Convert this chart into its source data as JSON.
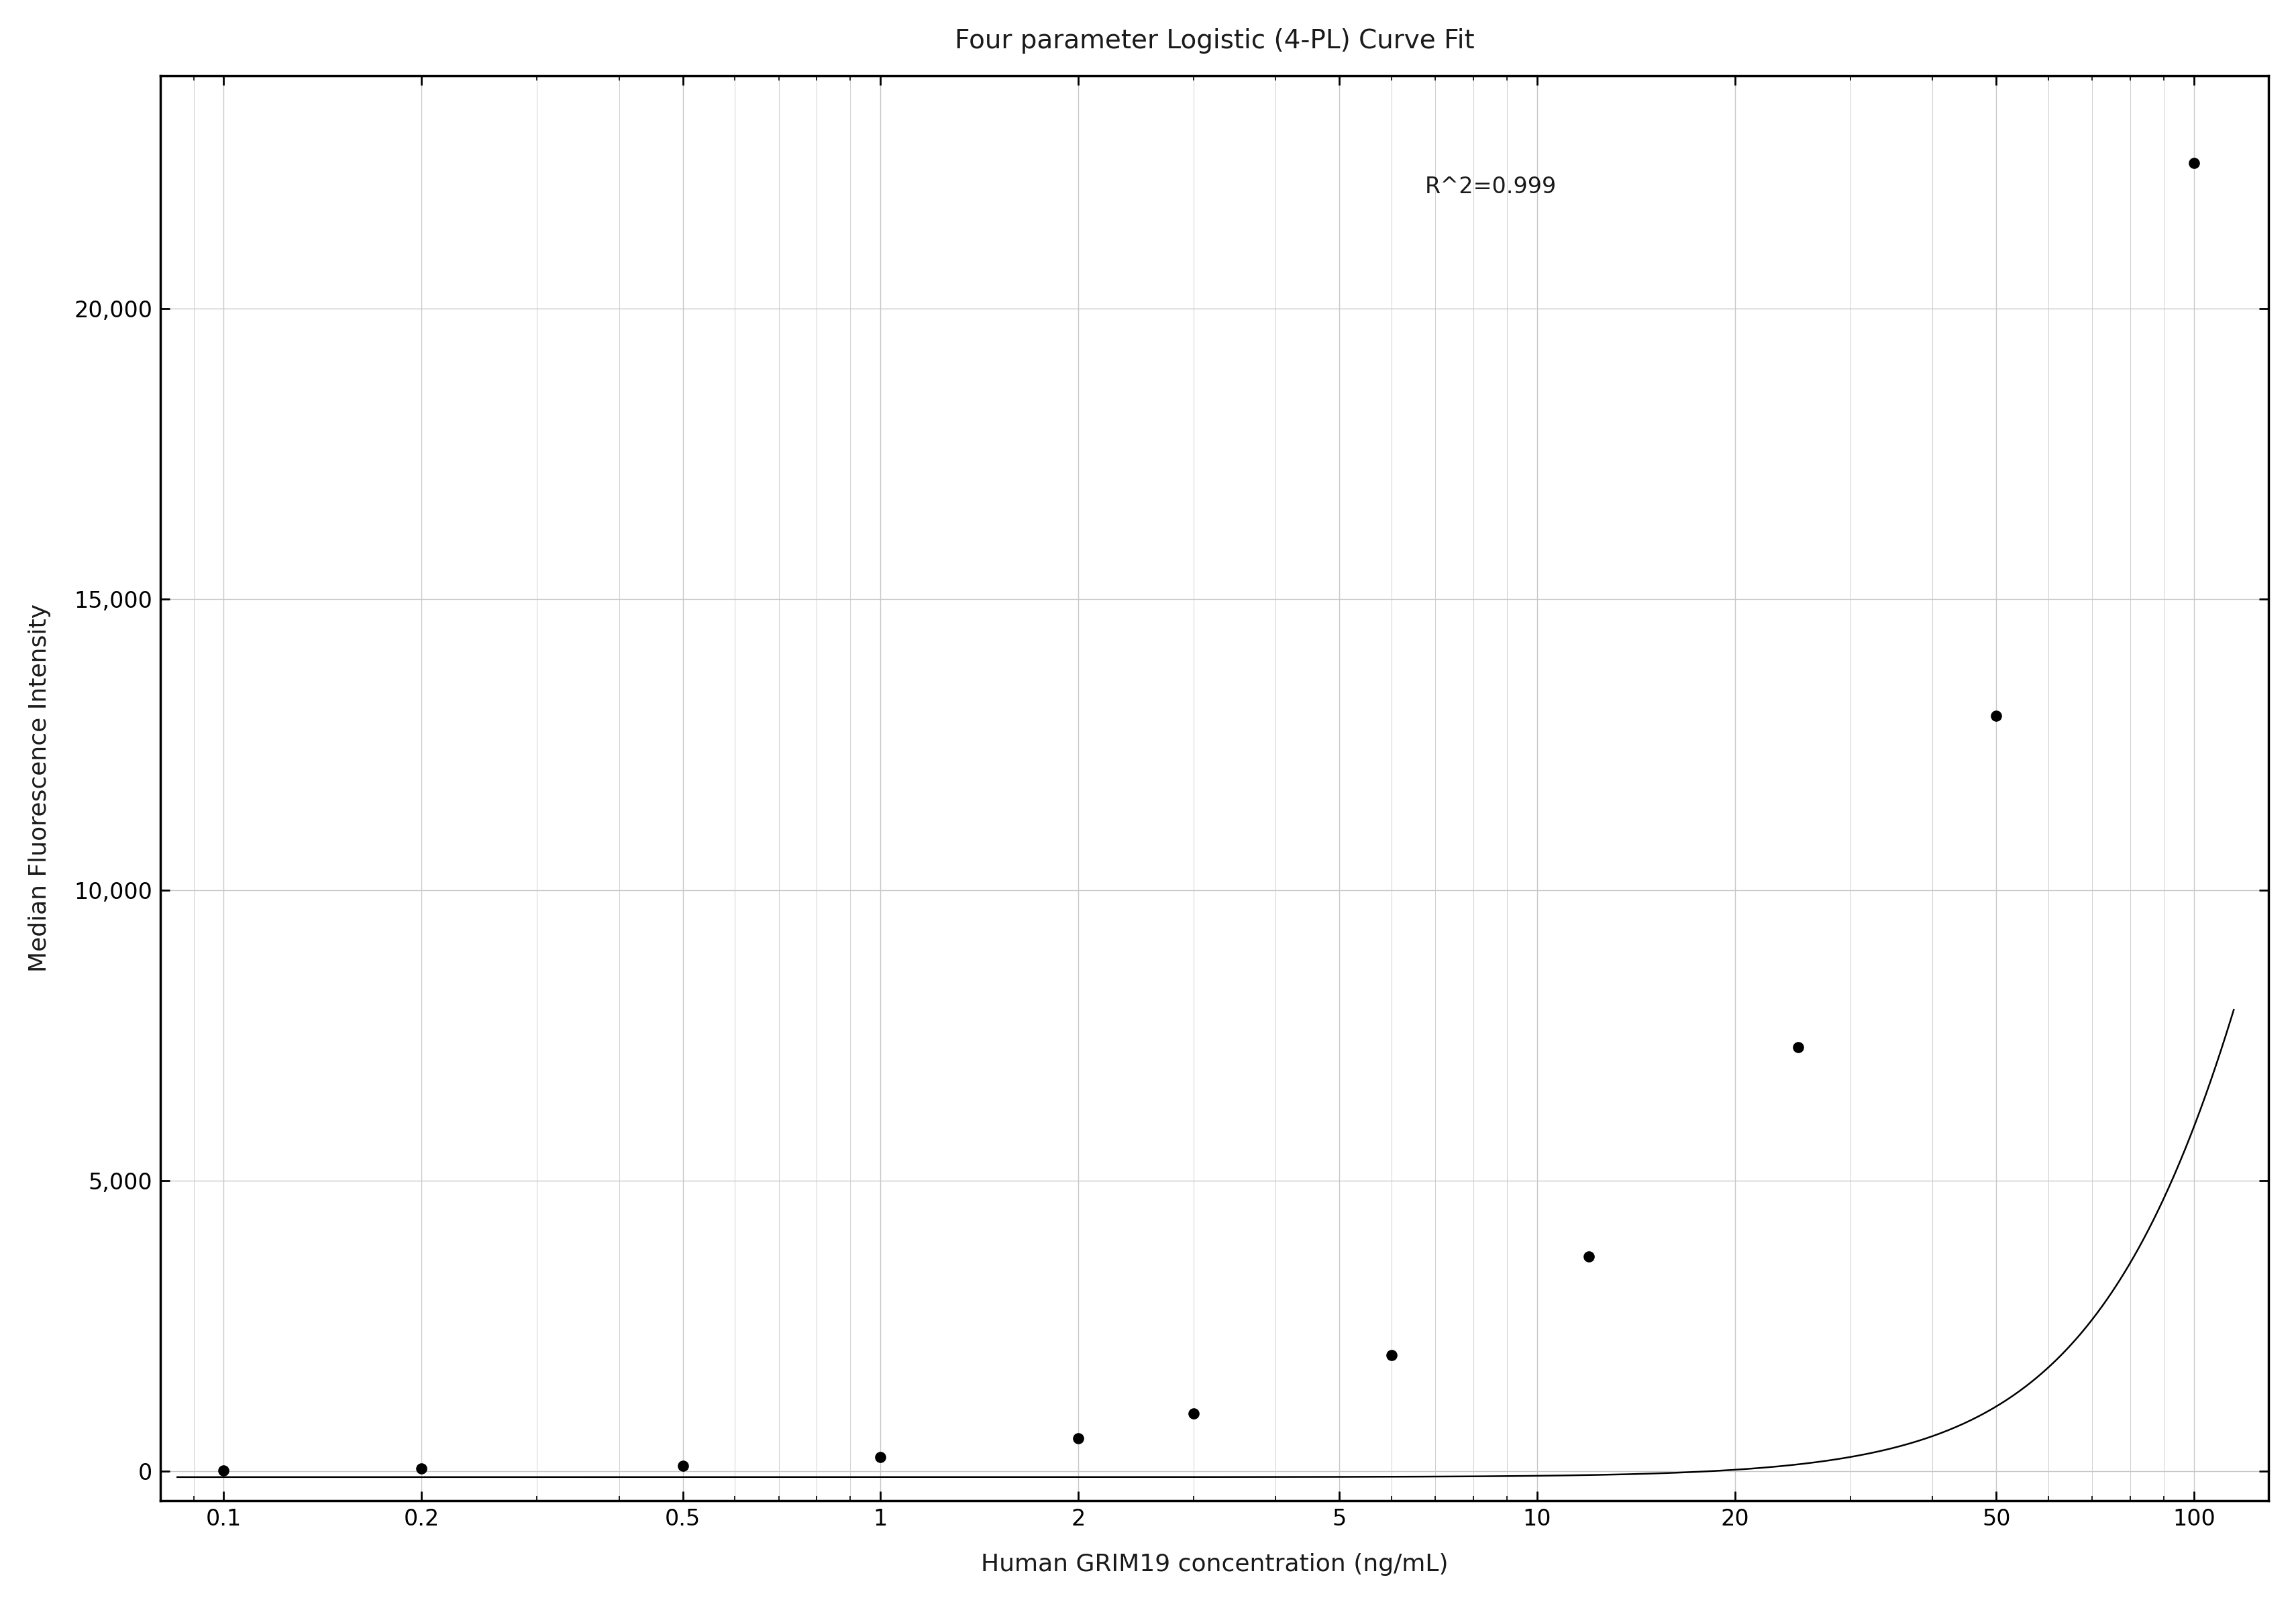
{
  "title": "Four parameter Logistic (4-PL) Curve Fit",
  "xlabel": "Human GRIM19 concentration (ng/mL)",
  "ylabel": "Median Fluorescence Intensity",
  "annotation": "R^2=0.999",
  "data_x": [
    0.1,
    0.2,
    0.5,
    1.0,
    2.0,
    3.0,
    6.0,
    12.0,
    25.0,
    50.0,
    100.0
  ],
  "data_y": [
    15,
    50,
    100,
    250,
    570,
    1000,
    2000,
    3700,
    7300,
    13000,
    22500
  ],
  "xmin": 0.08,
  "xmax": 130,
  "ymin": -500,
  "ymax": 24000,
  "xticks": [
    0.1,
    0.2,
    0.5,
    1,
    2,
    5,
    10,
    20,
    50,
    100
  ],
  "yticks": [
    0,
    5000,
    10000,
    15000,
    20000
  ],
  "background_color": "#ffffff",
  "grid_color": "#c8c8c8",
  "line_color": "#000000",
  "dot_color": "#000000",
  "text_color": "#1a1a1a",
  "title_fontsize": 28,
  "label_fontsize": 26,
  "tick_fontsize": 24,
  "annotation_fontsize": 24,
  "dot_size": 120,
  "line_width": 1.8
}
